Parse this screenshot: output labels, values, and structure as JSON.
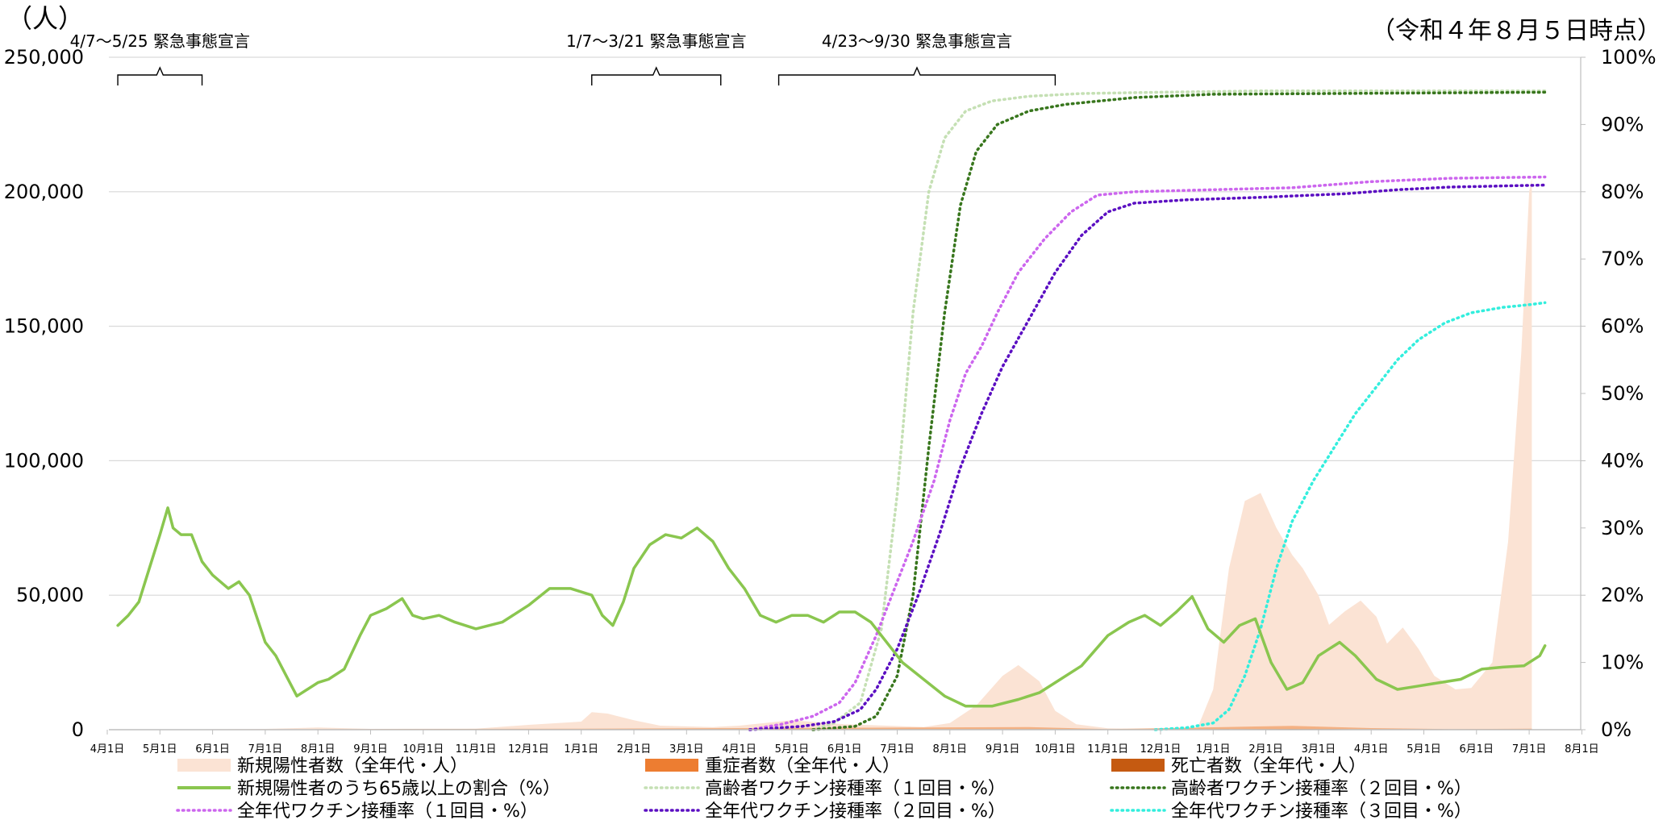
{
  "chart_data": {
    "type": "line",
    "y_unit_label": "（人）",
    "date_note": "（令和４年８月５日時点）",
    "ylim_left": [
      0,
      250000
    ],
    "ylim_right": [
      0,
      100
    ],
    "yticks_left": [
      "0",
      "50,000",
      "100,000",
      "150,000",
      "200,000",
      "250,000"
    ],
    "yticks_right": [
      "0%",
      "10%",
      "20%",
      "30%",
      "40%",
      "50%",
      "60%",
      "70%",
      "80%",
      "90%",
      "100%"
    ],
    "x_months": [
      "4月1日",
      "5月1日",
      "6月1日",
      "7月1日",
      "8月1日",
      "9月1日",
      "10月1日",
      "11月1日",
      "12月1日",
      "1月1日",
      "2月1日",
      "3月1日",
      "4月1日",
      "5月1日",
      "6月1日",
      "7月1日",
      "8月1日",
      "9月1日",
      "10月1日",
      "11月1日",
      "12月1日",
      "1月1日",
      "2月1日",
      "3月1日",
      "4月1日",
      "5月1日",
      "6月1日",
      "7月1日",
      "8月1日"
    ],
    "grid": true,
    "emergency_periods": [
      {
        "label": "4/7～5/25 緊急事態宣言",
        "start": 0.2,
        "end": 1.8
      },
      {
        "label": "1/7～3/21 緊急事態宣言",
        "start": 9.2,
        "end": 11.65
      },
      {
        "label": "4/23～9/30 緊急事態宣言",
        "start": 12.75,
        "end": 18.0
      }
    ],
    "legend": {
      "placement": "bottom",
      "items": [
        {
          "label": "新規陽性者数（全年代・人）",
          "color": "#fbe3d4",
          "kind": "area"
        },
        {
          "label": "重症者数（全年代・人）",
          "color": "#ed7d31",
          "kind": "bar"
        },
        {
          "label": "死亡者数（全年代・人）",
          "color": "#c55a11",
          "kind": "bar"
        },
        {
          "label": "新規陽性者のうち65歳以上の割合（%）",
          "color": "#8ac64f",
          "kind": "line"
        },
        {
          "label": "高齢者ワクチン接種率（１回目・%）",
          "color": "#c5e0b4",
          "kind": "dotted"
        },
        {
          "label": "高齢者ワクチン接種率（２回目・%）",
          "color": "#38761d",
          "kind": "dotted"
        },
        {
          "label": "全年代ワクチン接種率（１回目・%）",
          "color": "#cc66ee",
          "kind": "dotted"
        },
        {
          "label": "全年代ワクチン接種率（２回目・%）",
          "color": "#5b0fc2",
          "kind": "dotted"
        },
        {
          "label": "全年代ワクチン接種率（３回目・%）",
          "color": "#33eedd",
          "kind": "dotted"
        }
      ]
    },
    "series": [
      {
        "key": "new_cases",
        "axis": "left",
        "points": [
          [
            0,
            0
          ],
          [
            3,
            300
          ],
          [
            4,
            800
          ],
          [
            5,
            300
          ],
          [
            7,
            400
          ],
          [
            8,
            1800
          ],
          [
            9,
            3000
          ],
          [
            9.2,
            6500
          ],
          [
            9.5,
            6000
          ],
          [
            10,
            3500
          ],
          [
            10.5,
            1500
          ],
          [
            11.5,
            1000
          ],
          [
            12,
            1500
          ],
          [
            13,
            3500
          ],
          [
            14,
            2000
          ],
          [
            14.8,
            1500
          ],
          [
            15.5,
            1000
          ],
          [
            16,
            2500
          ],
          [
            16.5,
            9000
          ],
          [
            17,
            20000
          ],
          [
            17.3,
            24000
          ],
          [
            17.7,
            18000
          ],
          [
            18,
            7000
          ],
          [
            18.4,
            2000
          ],
          [
            19,
            500
          ],
          [
            20,
            200
          ],
          [
            20.7,
            500
          ],
          [
            21,
            15000
          ],
          [
            21.3,
            60000
          ],
          [
            21.6,
            85000
          ],
          [
            21.9,
            88000
          ],
          [
            22.2,
            75000
          ],
          [
            22.5,
            65000
          ],
          [
            22.7,
            60000
          ],
          [
            23,
            50000
          ],
          [
            23.2,
            39000
          ],
          [
            23.5,
            44000
          ],
          [
            23.8,
            48000
          ],
          [
            24.1,
            42000
          ],
          [
            24.3,
            32000
          ],
          [
            24.6,
            38000
          ],
          [
            24.9,
            30000
          ],
          [
            25.2,
            20000
          ],
          [
            25.6,
            15000
          ],
          [
            25.9,
            15500
          ],
          [
            26.3,
            25000
          ],
          [
            26.6,
            70000
          ],
          [
            26.85,
            140000
          ],
          [
            27.0,
            200000
          ],
          [
            27.05,
            205000
          ]
        ]
      },
      {
        "key": "severe_cases",
        "axis": "left",
        "points": [
          [
            0,
            0
          ],
          [
            9,
            400
          ],
          [
            12.5,
            600
          ],
          [
            17.5,
            1000
          ],
          [
            19,
            200
          ],
          [
            21.8,
            1200
          ],
          [
            22.5,
            1400
          ],
          [
            24,
            600
          ],
          [
            25.5,
            200
          ],
          [
            27.05,
            400
          ]
        ]
      },
      {
        "key": "deaths",
        "axis": "left",
        "points": [
          [
            0,
            0
          ],
          [
            9,
            80
          ],
          [
            12.5,
            100
          ],
          [
            17.5,
            60
          ],
          [
            19,
            20
          ],
          [
            22.5,
            250
          ],
          [
            24,
            120
          ],
          [
            25.5,
            50
          ],
          [
            27.05,
            60
          ]
        ]
      },
      {
        "key": "elderly_ratio",
        "axis": "right",
        "points": [
          [
            0.2,
            15.5
          ],
          [
            0.4,
            17
          ],
          [
            0.6,
            19
          ],
          [
            0.8,
            24
          ],
          [
            1.0,
            29
          ],
          [
            1.15,
            33
          ],
          [
            1.25,
            30
          ],
          [
            1.4,
            29
          ],
          [
            1.6,
            29
          ],
          [
            1.8,
            25
          ],
          [
            2.0,
            23
          ],
          [
            2.3,
            21
          ],
          [
            2.5,
            22
          ],
          [
            2.7,
            20
          ],
          [
            3.0,
            13
          ],
          [
            3.2,
            11
          ],
          [
            3.4,
            8
          ],
          [
            3.6,
            5
          ],
          [
            3.8,
            6
          ],
          [
            4.0,
            7
          ],
          [
            4.2,
            7.5
          ],
          [
            4.5,
            9
          ],
          [
            4.8,
            14
          ],
          [
            5.0,
            17
          ],
          [
            5.3,
            18
          ],
          [
            5.6,
            19.5
          ],
          [
            5.8,
            17
          ],
          [
            6.0,
            16.5
          ],
          [
            6.3,
            17
          ],
          [
            6.6,
            16
          ],
          [
            7.0,
            15
          ],
          [
            7.5,
            16
          ],
          [
            8.0,
            18.5
          ],
          [
            8.4,
            21
          ],
          [
            8.8,
            21
          ],
          [
            9.2,
            20
          ],
          [
            9.4,
            17
          ],
          [
            9.6,
            15.5
          ],
          [
            9.8,
            19
          ],
          [
            10.0,
            24
          ],
          [
            10.3,
            27.5
          ],
          [
            10.6,
            29
          ],
          [
            10.9,
            28.5
          ],
          [
            11.2,
            30
          ],
          [
            11.5,
            28
          ],
          [
            11.8,
            24
          ],
          [
            12.1,
            21
          ],
          [
            12.4,
            17
          ],
          [
            12.7,
            16
          ],
          [
            13.0,
            17
          ],
          [
            13.3,
            17
          ],
          [
            13.6,
            16
          ],
          [
            13.9,
            17.5
          ],
          [
            14.2,
            17.5
          ],
          [
            14.5,
            16
          ],
          [
            14.8,
            13
          ],
          [
            15.1,
            10
          ],
          [
            15.5,
            7.5
          ],
          [
            15.9,
            5
          ],
          [
            16.3,
            3.5
          ],
          [
            16.8,
            3.5
          ],
          [
            17.3,
            4.5
          ],
          [
            17.7,
            5.5
          ],
          [
            18.0,
            7
          ],
          [
            18.5,
            9.5
          ],
          [
            19.0,
            14
          ],
          [
            19.4,
            16
          ],
          [
            19.7,
            17
          ],
          [
            20.0,
            15.5
          ],
          [
            20.3,
            17.5
          ],
          [
            20.6,
            19.8
          ],
          [
            20.9,
            15
          ],
          [
            21.2,
            13
          ],
          [
            21.5,
            15.5
          ],
          [
            21.8,
            16.5
          ],
          [
            22.1,
            10
          ],
          [
            22.4,
            6
          ],
          [
            22.7,
            7
          ],
          [
            23.0,
            11
          ],
          [
            23.4,
            13
          ],
          [
            23.7,
            11
          ],
          [
            24.1,
            7.5
          ],
          [
            24.5,
            6
          ],
          [
            24.9,
            6.5
          ],
          [
            25.3,
            7
          ],
          [
            25.7,
            7.5
          ],
          [
            26.1,
            9
          ],
          [
            26.5,
            9.3
          ],
          [
            26.9,
            9.5
          ],
          [
            27.2,
            11
          ],
          [
            27.3,
            12.5
          ]
        ]
      },
      {
        "key": "elderly_vax_1",
        "axis": "right",
        "points": [
          [
            13.4,
            0
          ],
          [
            13.8,
            1
          ],
          [
            14.3,
            4
          ],
          [
            14.7,
            15
          ],
          [
            15.0,
            35
          ],
          [
            15.3,
            62
          ],
          [
            15.6,
            80
          ],
          [
            15.9,
            88
          ],
          [
            16.3,
            92
          ],
          [
            16.8,
            93.5
          ],
          [
            17.5,
            94.2
          ],
          [
            18.5,
            94.6
          ],
          [
            20,
            94.8
          ],
          [
            22,
            95
          ],
          [
            27.3,
            95
          ]
        ]
      },
      {
        "key": "elderly_vax_2",
        "axis": "right",
        "points": [
          [
            13.4,
            0
          ],
          [
            14.2,
            0.5
          ],
          [
            14.6,
            2
          ],
          [
            15.0,
            8
          ],
          [
            15.3,
            20
          ],
          [
            15.6,
            42
          ],
          [
            15.9,
            62
          ],
          [
            16.2,
            78
          ],
          [
            16.5,
            86
          ],
          [
            16.9,
            90
          ],
          [
            17.5,
            92
          ],
          [
            18.2,
            93
          ],
          [
            19.5,
            94
          ],
          [
            21,
            94.5
          ],
          [
            27.3,
            94.8
          ]
        ]
      },
      {
        "key": "all_vax_1",
        "axis": "right",
        "points": [
          [
            12.2,
            0
          ],
          [
            12.8,
            0.8
          ],
          [
            13.4,
            2
          ],
          [
            13.9,
            4
          ],
          [
            14.2,
            7
          ],
          [
            14.6,
            14
          ],
          [
            15.0,
            22
          ],
          [
            15.3,
            28
          ],
          [
            15.7,
            37
          ],
          [
            16.0,
            46
          ],
          [
            16.3,
            53
          ],
          [
            16.6,
            57
          ],
          [
            16.9,
            62
          ],
          [
            17.3,
            68
          ],
          [
            17.8,
            73
          ],
          [
            18.3,
            77
          ],
          [
            18.8,
            79.5
          ],
          [
            19.5,
            80
          ],
          [
            21,
            80.3
          ],
          [
            22.5,
            80.6
          ],
          [
            24,
            81.5
          ],
          [
            25.5,
            82
          ],
          [
            27.3,
            82.2
          ]
        ]
      },
      {
        "key": "all_vax_2",
        "axis": "right",
        "points": [
          [
            12.2,
            0
          ],
          [
            13.2,
            0.5
          ],
          [
            13.8,
            1.2
          ],
          [
            14.3,
            3
          ],
          [
            14.6,
            6
          ],
          [
            15.0,
            12
          ],
          [
            15.4,
            20
          ],
          [
            15.8,
            29
          ],
          [
            16.2,
            39
          ],
          [
            16.6,
            47
          ],
          [
            17.0,
            54
          ],
          [
            17.5,
            61
          ],
          [
            18.0,
            68
          ],
          [
            18.5,
            73.5
          ],
          [
            19.0,
            77
          ],
          [
            19.5,
            78.3
          ],
          [
            20.5,
            78.8
          ],
          [
            22,
            79.2
          ],
          [
            23.5,
            79.7
          ],
          [
            24.5,
            80.3
          ],
          [
            25.5,
            80.7
          ],
          [
            27.3,
            81
          ]
        ]
      },
      {
        "key": "all_vax_3",
        "axis": "right",
        "points": [
          [
            19.9,
            0
          ],
          [
            20.5,
            0.3
          ],
          [
            21.0,
            1
          ],
          [
            21.3,
            3
          ],
          [
            21.6,
            8
          ],
          [
            21.9,
            15
          ],
          [
            22.2,
            24
          ],
          [
            22.5,
            31
          ],
          [
            22.9,
            37
          ],
          [
            23.3,
            42
          ],
          [
            23.7,
            47
          ],
          [
            24.1,
            51
          ],
          [
            24.5,
            55
          ],
          [
            24.9,
            58
          ],
          [
            25.4,
            60.5
          ],
          [
            25.9,
            62
          ],
          [
            26.5,
            62.8
          ],
          [
            27.0,
            63.2
          ],
          [
            27.3,
            63.5
          ]
        ]
      }
    ]
  }
}
